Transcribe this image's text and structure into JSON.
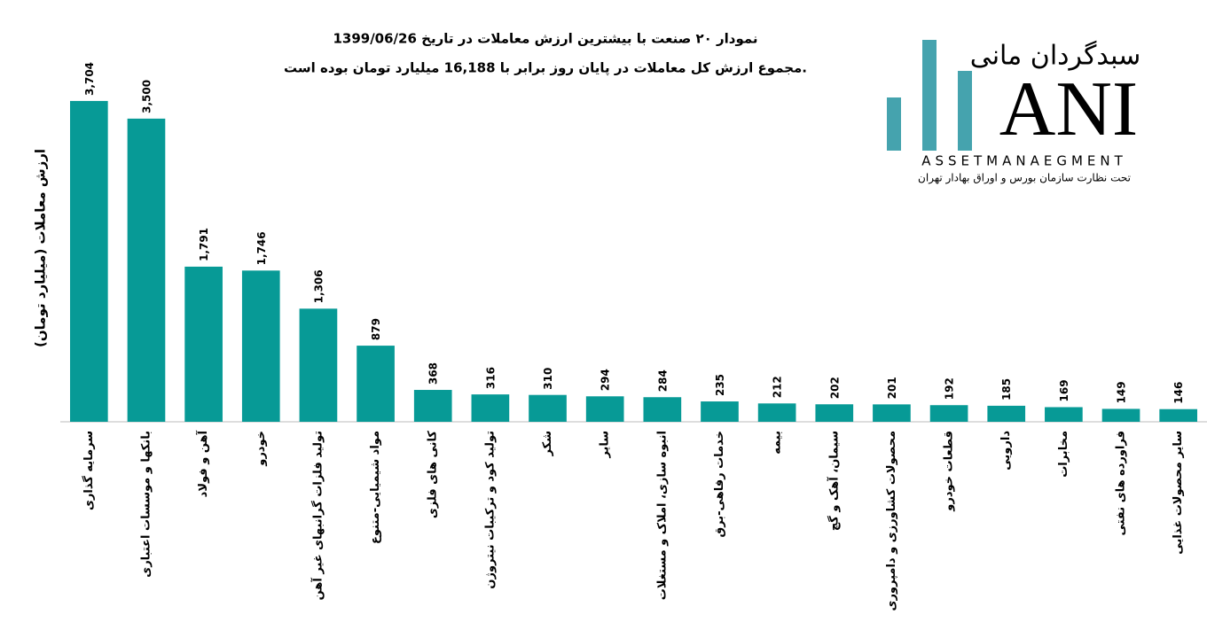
{
  "chart_data": {
    "type": "bar",
    "title": "نمودار ۲۰ صنعت با بیشترین ارزش معاملات در تاریخ 1399/06/26",
    "subtitle": "مجموع ارزش کل معاملات در پایان روز برابر با 16,188 میلیارد تومان بوده است.",
    "y_label": "ارزش معاملات (میلیارد تومان)",
    "categories": [
      "سرمایه گذاری",
      "بانکها و موسسات اعتباری",
      "آهن و فولاد",
      "خودرو",
      "تولید فلزات گرانبهای غیر آهن",
      "مواد شیمیایی-متنوع",
      "کانی های فلزی",
      "تولید کود و ترکیبات نیتروژن",
      "شکر",
      "سایر",
      "انبوه سازی، املاک و مستغلات",
      "خدمات رفاهی-برق",
      "بیمه",
      "سیمان، آهک و گچ",
      "محصولات کشاورزی و دامپروری",
      "قطعات خودرو",
      "دارویی",
      "مخابرات",
      "فراورده های نفتی",
      "سایر محصولات غذایی"
    ],
    "values": [
      3704,
      3500,
      1791,
      1746,
      1306,
      879,
      368,
      316,
      310,
      294,
      284,
      235,
      212,
      202,
      201,
      192,
      185,
      169,
      149,
      146
    ],
    "value_labels": [
      "3,704",
      "3,500",
      "1,791",
      "1,746",
      "1,306",
      "879",
      "368",
      "316",
      "310",
      "294",
      "284",
      "235",
      "212",
      "202",
      "201",
      "192",
      "185",
      "169",
      "149",
      "146"
    ],
    "color": "#079a96",
    "ylim": [
      0,
      4000
    ]
  },
  "logo": {
    "name": "سبدگردان مانی",
    "mark": "ANI",
    "english": "ASSETMANAEGMENT",
    "tagline": "تحت نظارت سازمان بورس و اوراق بهادار تهران"
  }
}
